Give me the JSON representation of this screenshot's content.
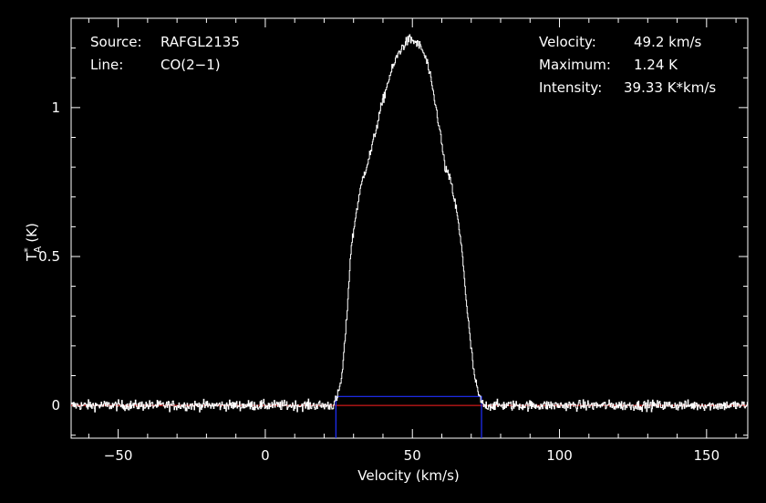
{
  "info": {
    "source_label": "Source:",
    "source_value": "RAFGL2135",
    "line_label": "Line:",
    "line_value": "CO(2−1)",
    "velocity_label": "Velocity:",
    "velocity_value": "49.2 km/s",
    "maximum_label": "Maximum:",
    "maximum_value": "1.24 K",
    "intensity_label": "Intensity:",
    "intensity_value": "39.33 K*km/s"
  },
  "colors": {
    "background": "#000000",
    "spectrum": "#ffffff",
    "frame": "#ffffff",
    "baseline": "#ff2020",
    "window": "#2030ff"
  },
  "chart_data": {
    "type": "line",
    "title": "",
    "xlabel": "Velocity (km/s)",
    "ylabel_main": "T",
    "ylabel_sup": "*",
    "ylabel_sub": "A",
    "ylabel_unit": "(K)",
    "xlim": [
      -66,
      164
    ],
    "ylim": [
      -0.11,
      1.3
    ],
    "x_ticks": [
      -50,
      0,
      50,
      100,
      150
    ],
    "x_tick_labels": [
      "−50",
      "0",
      "50",
      "100",
      "150"
    ],
    "y_ticks": [
      0,
      0.5,
      1
    ],
    "y_tick_labels": [
      "0",
      "0.5",
      "1"
    ],
    "baseline_y": 0,
    "integration_window": {
      "x_min": 24,
      "x_max": 73.5,
      "y_top": 0.03
    },
    "series": [
      {
        "x": [
          -66,
          20,
          23,
          24.5,
          26,
          27.5,
          29,
          31,
          33,
          36,
          39,
          42,
          45,
          47,
          49,
          51,
          53,
          55,
          57,
          59,
          61,
          63,
          65,
          67,
          68.5,
          70,
          71,
          72,
          73,
          74,
          76,
          164
        ],
        "values": [
          0,
          0,
          0,
          0.03,
          0.1,
          0.28,
          0.52,
          0.66,
          0.76,
          0.86,
          0.99,
          1.1,
          1.18,
          1.21,
          1.23,
          1.22,
          1.2,
          1.15,
          1.05,
          0.94,
          0.8,
          0.75,
          0.65,
          0.5,
          0.32,
          0.18,
          0.1,
          0.05,
          0.02,
          0,
          0,
          0
        ]
      }
    ],
    "noise_rms": 0.012
  }
}
